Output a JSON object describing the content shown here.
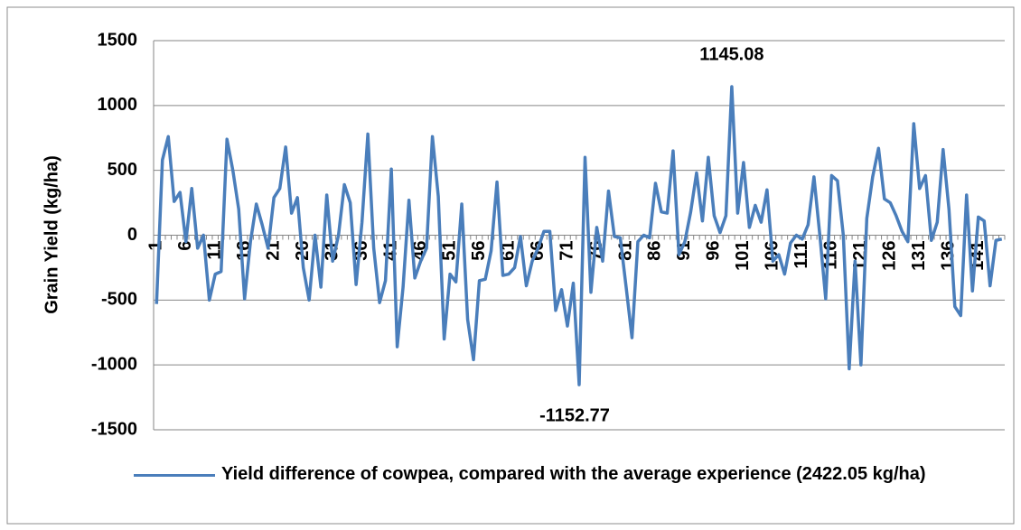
{
  "chart_data": {
    "type": "line",
    "y_label": "Grain Yield (kg/ha)",
    "categories": [
      "1",
      null,
      null,
      null,
      null,
      "6",
      null,
      null,
      null,
      null,
      "11",
      null,
      null,
      null,
      null,
      "16",
      null,
      null,
      null,
      null,
      "21",
      null,
      null,
      null,
      null,
      "26",
      null,
      null,
      null,
      null,
      "31",
      null,
      null,
      null,
      null,
      "36",
      null,
      null,
      null,
      null,
      "41",
      null,
      null,
      null,
      null,
      "46",
      null,
      null,
      null,
      null,
      "51",
      null,
      null,
      null,
      null,
      "56",
      null,
      null,
      null,
      null,
      "61",
      null,
      null,
      null,
      null,
      "66",
      null,
      null,
      null,
      null,
      "71",
      null,
      null,
      null,
      null,
      "76",
      null,
      null,
      null,
      null,
      "81",
      null,
      null,
      null,
      null,
      "86",
      null,
      null,
      null,
      null,
      "91",
      null,
      null,
      null,
      null,
      "96",
      null,
      null,
      null,
      null,
      "101",
      null,
      null,
      null,
      null,
      "106",
      null,
      null,
      null,
      null,
      "111",
      null,
      null,
      null,
      null,
      "116",
      null,
      null,
      null,
      null,
      "121",
      null,
      null,
      null,
      null,
      "126",
      null,
      null,
      null,
      null,
      "131",
      null,
      null,
      null,
      null,
      "136",
      null,
      null,
      null,
      null,
      "141",
      null,
      null,
      null,
      null
    ],
    "series": [
      {
        "name": "Yield difference of cowpea, compared with the average experience (2422.05 kg/ha)",
        "color": "#4a7ebb",
        "values": [
          -530,
          580,
          760,
          260,
          330,
          -50,
          360,
          -100,
          0,
          -500,
          -300,
          -280,
          740,
          500,
          200,
          -490,
          -50,
          240,
          80,
          -100,
          290,
          360,
          680,
          170,
          290,
          -250,
          -500,
          0,
          -400,
          310,
          -200,
          0,
          390,
          250,
          -380,
          100,
          780,
          -100,
          -520,
          -350,
          510,
          -860,
          -400,
          270,
          -330,
          -200,
          -100,
          760,
          300,
          -800,
          -300,
          -360,
          240,
          -650,
          -960,
          -350,
          -340,
          -120,
          410,
          -310,
          -300,
          -250,
          -10,
          -390,
          -200,
          -100,
          30,
          30,
          -580,
          -420,
          -700,
          -370,
          -1152.77,
          600,
          -440,
          60,
          -200,
          340,
          -10,
          -20,
          -400,
          -790,
          -50,
          0,
          -20,
          400,
          180,
          170,
          650,
          -150,
          -50,
          180,
          480,
          110,
          600,
          150,
          20,
          150,
          1145.08,
          170,
          560,
          60,
          230,
          100,
          350,
          -200,
          -150,
          -300,
          -60,
          0,
          -30,
          80,
          450,
          0,
          -490,
          460,
          420,
          0,
          -1030,
          -200,
          -1000,
          130,
          450,
          670,
          280,
          250,
          150,
          30,
          -50,
          860,
          360,
          460,
          -40,
          100,
          660,
          200,
          -550,
          -620,
          310,
          -430,
          140,
          110,
          -390,
          -40,
          -30
        ]
      }
    ],
    "ylim": [
      -1500,
      1500
    ],
    "yticks": [
      -1500,
      -1000,
      -500,
      0,
      500,
      1000,
      1500
    ],
    "grid": true
  }
}
